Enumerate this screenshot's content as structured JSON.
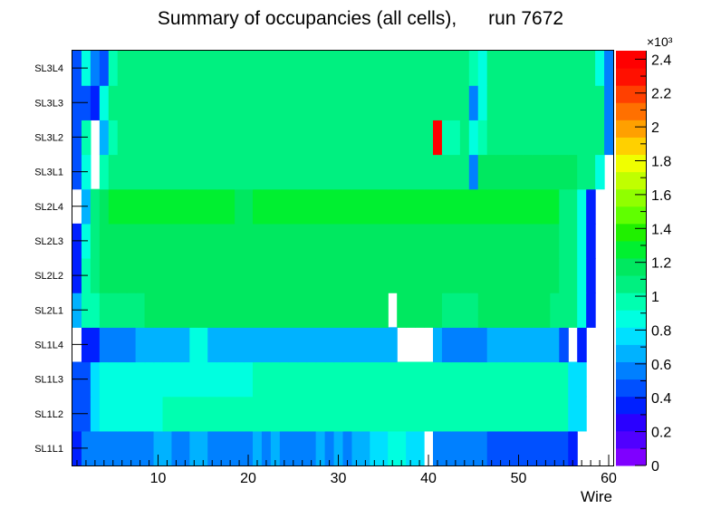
{
  "chart_data": {
    "type": "heatmap",
    "title": "Summary of occupancies (all cells),      run 7672",
    "xlabel": "Wire",
    "ylabel": "",
    "xlim": [
      0.5,
      60.5
    ],
    "x_ticks": [
      10,
      20,
      30,
      40,
      50,
      60
    ],
    "y_categories": [
      "SL1L1",
      "SL1L2",
      "SL1L3",
      "SL1L4",
      "SL2L1",
      "SL2L2",
      "SL2L3",
      "SL2L4",
      "SL3L1",
      "SL3L2",
      "SL3L3",
      "SL3L4"
    ],
    "z_range": [
      0,
      2450
    ],
    "colorbar_multiplier": "×10³",
    "colorbar_ticks": [
      0,
      0.2,
      0.4,
      0.6,
      0.8,
      1,
      1.2,
      1.4,
      1.6,
      1.8,
      2,
      2.2,
      2.4
    ],
    "colorbar_tick_labels": [
      "0",
      "0.2",
      "0.4",
      "0.6",
      "0.8",
      "1",
      "1.2",
      "1.4",
      "1.6",
      "1.8",
      "2",
      "2.2",
      "2.4"
    ],
    "rows": [
      {
        "layer": "SL1L1",
        "values": [
          400,
          600,
          600,
          600,
          600,
          600,
          600,
          600,
          600,
          650,
          650,
          600,
          600,
          650,
          650,
          600,
          600,
          600,
          550,
          550,
          650,
          600,
          650,
          600,
          600,
          600,
          600,
          650,
          600,
          650,
          600,
          650,
          650,
          750,
          750,
          850,
          850,
          750,
          750,
          null,
          550,
          550,
          550,
          550,
          550,
          550,
          450,
          450,
          450,
          450,
          450,
          450,
          450,
          450,
          450,
          350,
          null,
          null,
          null,
          null
        ]
      },
      {
        "layer": "SL1L2",
        "values": [
          450,
          450,
          800,
          850,
          850,
          850,
          850,
          850,
          850,
          850,
          950,
          950,
          950,
          950,
          950,
          950,
          950,
          950,
          950,
          950,
          950,
          950,
          950,
          950,
          950,
          950,
          950,
          950,
          950,
          950,
          950,
          950,
          950,
          950,
          950,
          950,
          950,
          950,
          950,
          950,
          950,
          950,
          950,
          950,
          950,
          950,
          950,
          950,
          950,
          950,
          950,
          950,
          950,
          950,
          950,
          750,
          750,
          null,
          null,
          null
        ]
      },
      {
        "layer": "SL1L3",
        "values": [
          450,
          450,
          750,
          850,
          850,
          850,
          850,
          850,
          850,
          850,
          850,
          850,
          850,
          850,
          850,
          850,
          850,
          850,
          850,
          850,
          950,
          950,
          950,
          950,
          950,
          950,
          950,
          950,
          950,
          950,
          950,
          950,
          950,
          950,
          950,
          950,
          950,
          950,
          950,
          950,
          950,
          950,
          950,
          950,
          950,
          950,
          950,
          950,
          950,
          950,
          950,
          950,
          950,
          950,
          950,
          750,
          750,
          null,
          null,
          null
        ]
      },
      {
        "layer": "SL1L4",
        "values": [
          null,
          400,
          400,
          550,
          550,
          550,
          600,
          700,
          700,
          700,
          700,
          700,
          700,
          850,
          850,
          700,
          700,
          700,
          700,
          700,
          700,
          700,
          700,
          700,
          700,
          700,
          700,
          700,
          700,
          700,
          700,
          700,
          700,
          700,
          700,
          700,
          null,
          null,
          null,
          null,
          700,
          550,
          550,
          550,
          550,
          550,
          700,
          700,
          700,
          700,
          700,
          700,
          700,
          700,
          450,
          null,
          400,
          null,
          null,
          null
        ]
      },
      {
        "layer": "SL2L1",
        "values": [
          700,
          950,
          950,
          1050,
          1050,
          1050,
          1050,
          1050,
          1150,
          1150,
          1150,
          1150,
          1150,
          1150,
          1150,
          1150,
          1150,
          1150,
          1150,
          1150,
          1150,
          1150,
          1150,
          1150,
          1150,
          1150,
          1150,
          1150,
          1150,
          1150,
          1150,
          1150,
          1150,
          1150,
          1150,
          null,
          1150,
          1150,
          1150,
          1150,
          1150,
          1050,
          1050,
          1050,
          1050,
          1150,
          1150,
          1150,
          1150,
          1150,
          1150,
          1150,
          1150,
          1050,
          1050,
          1050,
          850,
          400,
          null,
          null
        ]
      },
      {
        "layer": "SL2L2",
        "values": [
          400,
          950,
          1050,
          1150,
          1150,
          1150,
          1150,
          1150,
          1150,
          1150,
          1150,
          1150,
          1150,
          1150,
          1150,
          1150,
          1150,
          1150,
          1150,
          1150,
          1150,
          1150,
          1150,
          1150,
          1150,
          1150,
          1150,
          1150,
          1150,
          1150,
          1150,
          1150,
          1150,
          1150,
          1150,
          1150,
          1150,
          1150,
          1150,
          1150,
          1150,
          1150,
          1150,
          1150,
          1150,
          1150,
          1150,
          1150,
          1150,
          1150,
          1150,
          1150,
          1150,
          1150,
          1050,
          1050,
          850,
          400,
          null,
          null
        ]
      },
      {
        "layer": "SL2L3",
        "values": [
          400,
          850,
          1050,
          1150,
          1150,
          1150,
          1150,
          1150,
          1150,
          1150,
          1150,
          1150,
          1150,
          1150,
          1150,
          1150,
          1150,
          1150,
          1150,
          1150,
          1150,
          1150,
          1150,
          1150,
          1150,
          1150,
          1150,
          1150,
          1150,
          1150,
          1150,
          1150,
          1150,
          1150,
          1150,
          1150,
          1150,
          1150,
          1150,
          1150,
          1150,
          1150,
          1150,
          1150,
          1150,
          1150,
          1150,
          1150,
          1150,
          1150,
          1150,
          1150,
          1150,
          1150,
          1050,
          1050,
          850,
          400,
          null,
          null
        ]
      },
      {
        "layer": "SL2L4",
        "values": [
          null,
          700,
          1050,
          1150,
          1250,
          1250,
          1250,
          1250,
          1250,
          1250,
          1250,
          1250,
          1250,
          1250,
          1250,
          1250,
          1250,
          1250,
          1150,
          1150,
          1250,
          1250,
          1250,
          1250,
          1250,
          1250,
          1250,
          1250,
          1250,
          1250,
          1250,
          1250,
          1250,
          1250,
          1250,
          1250,
          1250,
          1250,
          1250,
          1250,
          1250,
          1250,
          1250,
          1250,
          1250,
          1250,
          1250,
          1250,
          1250,
          1250,
          1250,
          1250,
          1250,
          1250,
          1050,
          1050,
          850,
          400,
          null,
          null
        ]
      },
      {
        "layer": "SL3L1",
        "values": [
          450,
          850,
          null,
          950,
          1050,
          1050,
          1050,
          1050,
          1050,
          1050,
          1050,
          1050,
          1050,
          1050,
          1050,
          1050,
          1050,
          1050,
          1050,
          1050,
          1050,
          1050,
          1050,
          1050,
          1050,
          1050,
          1050,
          1050,
          1050,
          1050,
          1050,
          1050,
          1050,
          1050,
          1050,
          1050,
          1050,
          1050,
          1050,
          1050,
          1050,
          1050,
          1050,
          1050,
          550,
          1150,
          1150,
          1150,
          1150,
          1150,
          1150,
          1150,
          1150,
          1150,
          1150,
          1150,
          1050,
          1050,
          850,
          null
        ]
      },
      {
        "layer": "SL3L2",
        "values": [
          450,
          950,
          null,
          650,
          950,
          1050,
          1050,
          1050,
          1050,
          1050,
          1050,
          1050,
          1050,
          1050,
          1050,
          1050,
          1050,
          1050,
          1050,
          1050,
          1050,
          1050,
          1050,
          1050,
          1050,
          1050,
          1050,
          1050,
          1050,
          1050,
          1050,
          1050,
          1050,
          1050,
          1050,
          1050,
          1050,
          1050,
          1050,
          1050,
          2450,
          950,
          950,
          1050,
          850,
          950,
          1050,
          1050,
          1050,
          1050,
          1050,
          1050,
          1050,
          1050,
          1050,
          1050,
          1050,
          1050,
          1050,
          550
        ]
      },
      {
        "layer": "SL3L3",
        "values": [
          450,
          450,
          350,
          850,
          1050,
          1050,
          1050,
          1050,
          1050,
          1050,
          1050,
          1050,
          1050,
          1050,
          1050,
          1050,
          1050,
          1050,
          1050,
          1050,
          1050,
          1050,
          1050,
          1050,
          1050,
          1050,
          1050,
          1050,
          1050,
          1050,
          1050,
          1050,
          1050,
          1050,
          1050,
          1050,
          1050,
          1050,
          1050,
          1050,
          1050,
          1050,
          1050,
          1050,
          550,
          850,
          1050,
          1050,
          1050,
          1050,
          1050,
          1050,
          1050,
          1050,
          1050,
          1050,
          1050,
          1050,
          1050,
          550
        ]
      },
      {
        "layer": "SL3L4",
        "values": [
          450,
          850,
          600,
          450,
          950,
          1050,
          1050,
          1050,
          1050,
          1050,
          1050,
          1050,
          1050,
          1050,
          1050,
          1050,
          1050,
          1050,
          1050,
          1050,
          1050,
          1050,
          1050,
          1050,
          1050,
          1050,
          1050,
          1050,
          1050,
          1050,
          1050,
          1050,
          1050,
          1050,
          1050,
          1050,
          1050,
          1050,
          1050,
          1050,
          1050,
          1050,
          1050,
          1050,
          950,
          850,
          1050,
          1050,
          1050,
          1050,
          1050,
          1050,
          1050,
          1050,
          1050,
          1050,
          1050,
          1050,
          850,
          550
        ]
      }
    ]
  }
}
